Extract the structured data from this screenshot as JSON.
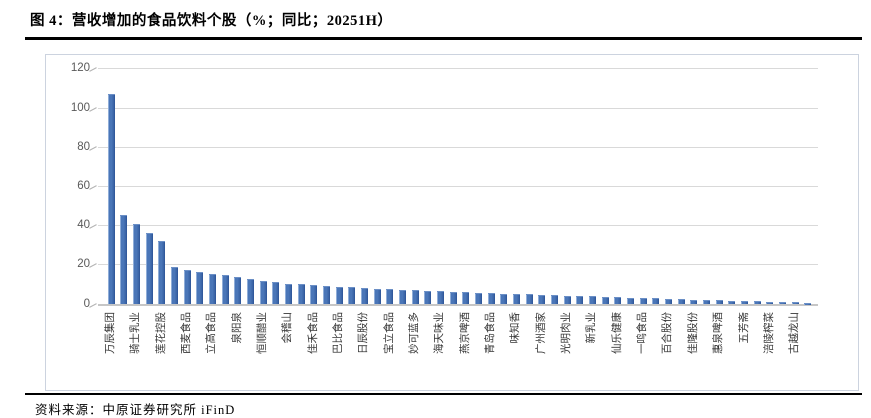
{
  "figure": {
    "title": "图 4：营收增加的食品饮料个股（%；同比；20251H）",
    "source": "资料来源：中原证券研究所  iFinD"
  },
  "chart_data": {
    "type": "bar",
    "title": "营收增加的食品饮料个股",
    "unit": "%",
    "period": "20251H",
    "comparison": "同比",
    "xlabel": "",
    "ylabel": "",
    "ylim": [
      0,
      120
    ],
    "yticks": [
      0,
      20,
      40,
      60,
      80,
      100,
      120
    ],
    "grid": true,
    "legend": "none",
    "bar_color": "#4a76b8",
    "label_interval": 2,
    "bars": [
      {
        "label": "万辰集团",
        "value": 106.7
      },
      {
        "label": "",
        "value": 45.1
      },
      {
        "label": "骑士乳业",
        "value": 40.7
      },
      {
        "label": "",
        "value": 35.8
      },
      {
        "label": "莲花控股",
        "value": 31.9
      },
      {
        "label": "",
        "value": 18.4
      },
      {
        "label": "西麦食品",
        "value": 17.2
      },
      {
        "label": "",
        "value": 16.3
      },
      {
        "label": "立高食品",
        "value": 15.3
      },
      {
        "label": "",
        "value": 14.6
      },
      {
        "label": "泉阳泉",
        "value": 13.3
      },
      {
        "label": "",
        "value": 12.4
      },
      {
        "label": "恒顺醋业",
        "value": 11.6
      },
      {
        "label": "",
        "value": 11.1
      },
      {
        "label": "会稽山",
        "value": 10.2
      },
      {
        "label": "",
        "value": 9.7
      },
      {
        "label": "佳禾食品",
        "value": 9.4
      },
      {
        "label": "",
        "value": 8.9
      },
      {
        "label": "巴比食品",
        "value": 8.5
      },
      {
        "label": "",
        "value": 8.2
      },
      {
        "label": "日辰股份",
        "value": 7.9
      },
      {
        "label": "",
        "value": 7.4
      },
      {
        "label": "宝立食品",
        "value": 7.2
      },
      {
        "label": "",
        "value": 6.9
      },
      {
        "label": "妙可蓝多",
        "value": 6.7
      },
      {
        "label": "",
        "value": 6.3
      },
      {
        "label": "海天味业",
        "value": 6.2
      },
      {
        "label": "",
        "value": 6.0
      },
      {
        "label": "燕京啤酒",
        "value": 5.7
      },
      {
        "label": "",
        "value": 5.3
      },
      {
        "label": "青岛食品",
        "value": 5.2
      },
      {
        "label": "",
        "value": 5.0
      },
      {
        "label": "味知香",
        "value": 4.8
      },
      {
        "label": "",
        "value": 4.6
      },
      {
        "label": "广州酒家",
        "value": 4.4
      },
      {
        "label": "",
        "value": 4.2
      },
      {
        "label": "光明肉业",
        "value": 4.0
      },
      {
        "label": "",
        "value": 3.8
      },
      {
        "label": "新乳业",
        "value": 3.6
      },
      {
        "label": "",
        "value": 3.4
      },
      {
        "label": "仙乐健康",
        "value": 3.2
      },
      {
        "label": "",
        "value": 3.0
      },
      {
        "label": "一鸣食品",
        "value": 2.8
      },
      {
        "label": "",
        "value": 2.6
      },
      {
        "label": "百合股份",
        "value": 2.4
      },
      {
        "label": "",
        "value": 2.2
      },
      {
        "label": "佳隆股份",
        "value": 2.0
      },
      {
        "label": "",
        "value": 1.8
      },
      {
        "label": "惠泉啤酒",
        "value": 1.6
      },
      {
        "label": "",
        "value": 1.5
      },
      {
        "label": "五芳斋",
        "value": 1.3
      },
      {
        "label": "",
        "value": 1.1
      },
      {
        "label": "涪陵榨菜",
        "value": 1.0
      },
      {
        "label": "",
        "value": 0.8
      },
      {
        "label": "古越龙山",
        "value": 0.6
      },
      {
        "label": "",
        "value": 0.4
      }
    ]
  }
}
